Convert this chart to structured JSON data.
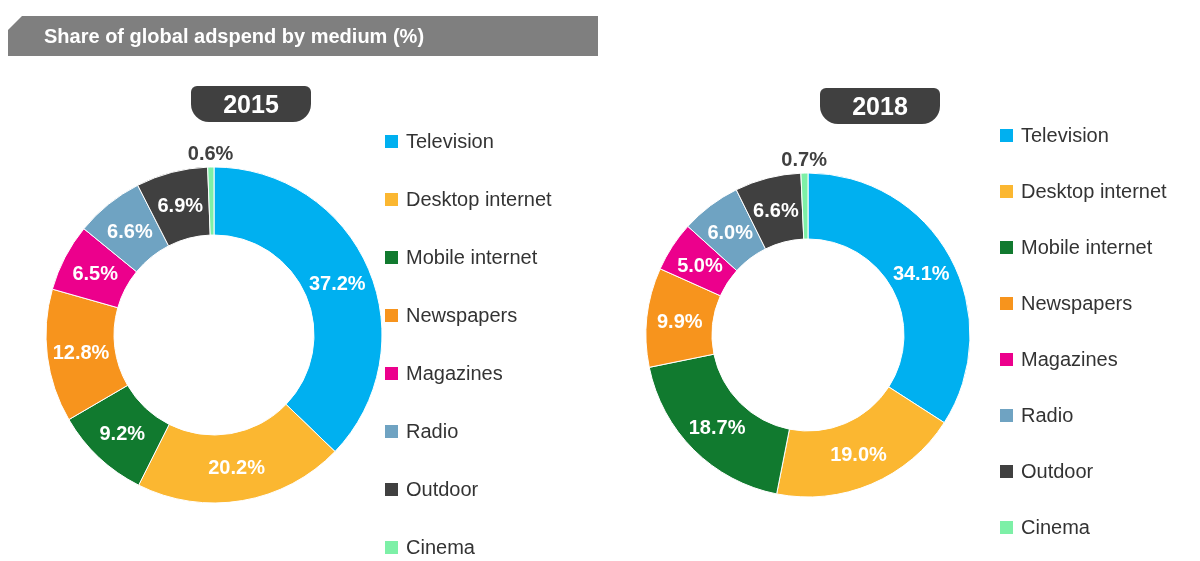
{
  "chart_data": [
    {
      "type": "donut",
      "title": "Share of global adspend by medium (%)",
      "subtitle": "2015",
      "categories": [
        "Television",
        "Desktop internet",
        "Mobile internet",
        "Newspapers",
        "Magazines",
        "Radio",
        "Outdoor",
        "Cinema"
      ],
      "values": [
        37.2,
        20.2,
        9.2,
        12.8,
        6.5,
        6.6,
        6.9,
        0.6
      ],
      "colors": [
        "#00b0f0",
        "#fbb731",
        "#117a2f",
        "#f7941d",
        "#ec008c",
        "#6fa3c2",
        "#404040",
        "#7df0a7"
      ],
      "value_labels": [
        "37.2%",
        "20.2%",
        "9.2%",
        "12.8%",
        "6.5%",
        "6.6%",
        "6.9%",
        "0.6%"
      ],
      "legend": "right"
    },
    {
      "type": "donut",
      "title": "2018",
      "categories": [
        "Television",
        "Desktop internet",
        "Mobile internet",
        "Newspapers",
        "Magazines",
        "Radio",
        "Outdoor",
        "Cinema"
      ],
      "values": [
        34.1,
        19.0,
        18.7,
        9.9,
        5.0,
        6.0,
        6.6,
        0.7
      ],
      "colors": [
        "#00b0f0",
        "#fbb731",
        "#117a2f",
        "#f7941d",
        "#ec008c",
        "#6fa3c2",
        "#404040",
        "#7df0a7"
      ],
      "value_labels": [
        "34.1%",
        "19.0%",
        "18.7%",
        "9.9%",
        "5.0%",
        "6.0%",
        "6.6%",
        "0.7%"
      ],
      "legend": "right"
    }
  ]
}
